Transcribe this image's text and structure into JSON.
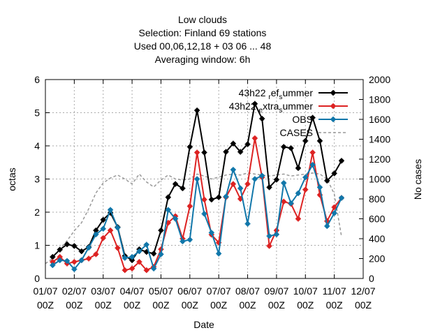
{
  "chart_data": {
    "type": "line",
    "title_lines": [
      "Low clouds",
      "Selection: Finland     69 stations",
      "Used  00,06,12,18  + 03 06 ... 48",
      "Averaging window:  6h"
    ],
    "xlabel": "Date",
    "ylabel": "octas",
    "y2label": "No cases",
    "ylim": [
      0,
      6
    ],
    "y2lim": [
      0,
      2000
    ],
    "yticks": [
      "0",
      "1",
      "2",
      "3",
      "4",
      "5",
      "6"
    ],
    "y2ticks": [
      "0",
      "200",
      "400",
      "600",
      "800",
      "1000",
      "1200",
      "1400",
      "1600",
      "1800",
      "2000"
    ],
    "xlim": [
      0,
      11
    ],
    "xticks_top": [
      "01/07",
      "02/07",
      "03/07",
      "04/07",
      "05/07",
      "06/07",
      "07/07",
      "08/07",
      "09/07",
      "10/07",
      "11/07",
      "12/07"
    ],
    "xticks_bottom": [
      "00Z",
      "00Z",
      "00Z",
      "00Z",
      "00Z",
      "00Z",
      "00Z",
      "00Z",
      "00Z",
      "00Z",
      "00Z",
      "00Z"
    ],
    "grid": true,
    "legend_position": "top-right",
    "series": [
      {
        "name": "43h22 ref summer",
        "label_parts": [
          "43h22 ",
          "r",
          "ef",
          "s",
          "ummer"
        ],
        "color": "#000000",
        "points": [
          [
            0.25,
            0.65
          ],
          [
            0.5,
            0.87
          ],
          [
            0.75,
            1.03
          ],
          [
            1.0,
            0.98
          ],
          [
            1.25,
            0.82
          ],
          [
            1.5,
            0.95
          ],
          [
            1.75,
            1.45
          ],
          [
            2.0,
            1.77
          ],
          [
            2.25,
            1.98
          ],
          [
            2.5,
            1.55
          ],
          [
            2.75,
            0.68
          ],
          [
            3.0,
            0.55
          ],
          [
            3.25,
            0.88
          ],
          [
            3.5,
            0.8
          ],
          [
            3.75,
            0.75
          ],
          [
            4.0,
            1.45
          ],
          [
            4.25,
            2.45
          ],
          [
            4.5,
            2.85
          ],
          [
            4.75,
            2.72
          ],
          [
            5.0,
            3.97
          ],
          [
            5.25,
            5.07
          ],
          [
            5.5,
            3.8
          ],
          [
            5.75,
            2.38
          ],
          [
            6.0,
            2.45
          ],
          [
            6.25,
            3.82
          ],
          [
            6.5,
            4.07
          ],
          [
            6.75,
            3.82
          ],
          [
            7.0,
            4.05
          ],
          [
            7.25,
            5.27
          ],
          [
            7.5,
            4.82
          ],
          [
            7.75,
            2.75
          ],
          [
            8.0,
            2.98
          ],
          [
            8.25,
            3.97
          ],
          [
            8.5,
            3.93
          ],
          [
            8.75,
            3.33
          ],
          [
            9.0,
            4.15
          ],
          [
            9.25,
            4.85
          ],
          [
            9.5,
            4.15
          ],
          [
            9.75,
            2.95
          ],
          [
            10.0,
            3.17
          ],
          [
            10.25,
            3.55
          ]
        ]
      },
      {
        "name": "43h22 extra summer",
        "label_parts": [
          "43h22 ",
          "e",
          "xtra",
          "s",
          "ummer"
        ],
        "color": "#dd2222",
        "points": [
          [
            0.25,
            0.5
          ],
          [
            0.5,
            0.65
          ],
          [
            0.75,
            0.45
          ],
          [
            1.0,
            0.5
          ],
          [
            1.25,
            0.55
          ],
          [
            1.5,
            0.6
          ],
          [
            1.75,
            0.73
          ],
          [
            2.0,
            1.22
          ],
          [
            2.25,
            1.45
          ],
          [
            2.5,
            0.92
          ],
          [
            2.75,
            0.25
          ],
          [
            3.0,
            0.3
          ],
          [
            3.25,
            0.5
          ],
          [
            3.5,
            0.25
          ],
          [
            3.75,
            0.35
          ],
          [
            4.0,
            0.88
          ],
          [
            4.25,
            1.68
          ],
          [
            4.5,
            1.88
          ],
          [
            4.75,
            1.2
          ],
          [
            5.0,
            2.18
          ],
          [
            5.25,
            3.8
          ],
          [
            5.5,
            2.38
          ],
          [
            5.75,
            1.32
          ],
          [
            6.0,
            1.08
          ],
          [
            6.25,
            2.45
          ],
          [
            6.5,
            2.85
          ],
          [
            6.75,
            2.4
          ],
          [
            7.0,
            2.85
          ],
          [
            7.25,
            4.23
          ],
          [
            7.5,
            3.05
          ],
          [
            7.75,
            0.98
          ],
          [
            8.0,
            1.45
          ],
          [
            8.25,
            2.32
          ],
          [
            8.5,
            2.25
          ],
          [
            8.75,
            1.8
          ],
          [
            9.0,
            2.68
          ],
          [
            9.25,
            3.8
          ],
          [
            9.5,
            2.52
          ],
          [
            9.75,
            1.73
          ],
          [
            10.0,
            2.15
          ],
          [
            10.25,
            2.43
          ]
        ]
      },
      {
        "name": "OBS",
        "label_parts": [
          "OBS"
        ],
        "color": "#1177aa",
        "points": [
          [
            0.25,
            0.4
          ],
          [
            0.5,
            0.55
          ],
          [
            0.75,
            0.53
          ],
          [
            1.0,
            0.28
          ],
          [
            1.25,
            0.55
          ],
          [
            1.5,
            0.93
          ],
          [
            1.75,
            1.33
          ],
          [
            2.0,
            1.5
          ],
          [
            2.25,
            2.07
          ],
          [
            2.5,
            1.53
          ],
          [
            2.75,
            0.62
          ],
          [
            3.0,
            0.65
          ],
          [
            3.25,
            0.82
          ],
          [
            3.5,
            1.02
          ],
          [
            3.75,
            0.3
          ],
          [
            4.0,
            0.73
          ],
          [
            4.25,
            2.07
          ],
          [
            4.5,
            1.8
          ],
          [
            4.75,
            1.12
          ],
          [
            5.0,
            1.17
          ],
          [
            5.25,
            3.0
          ],
          [
            5.5,
            1.95
          ],
          [
            5.75,
            1.38
          ],
          [
            6.0,
            0.75
          ],
          [
            6.25,
            2.47
          ],
          [
            6.5,
            3.28
          ],
          [
            6.75,
            2.72
          ],
          [
            7.0,
            1.65
          ],
          [
            7.25,
            3.0
          ],
          [
            7.5,
            3.1
          ],
          [
            7.75,
            1.28
          ],
          [
            8.0,
            1.33
          ],
          [
            8.25,
            2.88
          ],
          [
            8.5,
            2.27
          ],
          [
            8.75,
            2.57
          ],
          [
            9.0,
            3.05
          ],
          [
            9.25,
            3.43
          ],
          [
            9.5,
            2.75
          ],
          [
            9.75,
            1.58
          ],
          [
            10.0,
            1.97
          ],
          [
            10.25,
            2.43
          ]
        ]
      },
      {
        "name": "CASES",
        "label_parts": [
          "CASES"
        ],
        "color": "#999999",
        "axis": "y2",
        "dashed": true,
        "points": [
          [
            0.0,
            150
          ],
          [
            0.25,
            200
          ],
          [
            0.5,
            300
          ],
          [
            0.75,
            380
          ],
          [
            1.0,
            480
          ],
          [
            1.25,
            560
          ],
          [
            1.5,
            700
          ],
          [
            1.75,
            860
          ],
          [
            2.0,
            960
          ],
          [
            2.25,
            1010
          ],
          [
            2.5,
            1040
          ],
          [
            2.75,
            1000
          ],
          [
            3.0,
            950
          ],
          [
            3.25,
            1050
          ],
          [
            3.5,
            970
          ],
          [
            3.75,
            920
          ],
          [
            4.0,
            990
          ],
          [
            4.25,
            1040
          ],
          [
            4.5,
            1000
          ],
          [
            4.75,
            990
          ],
          [
            5.0,
            1000
          ],
          [
            5.25,
            1050
          ],
          [
            5.5,
            1030
          ],
          [
            5.75,
            1000
          ],
          [
            6.0,
            1020
          ],
          [
            6.25,
            1040
          ],
          [
            6.5,
            1050
          ],
          [
            6.75,
            1040
          ],
          [
            7.0,
            1060
          ],
          [
            7.25,
            1050
          ],
          [
            7.5,
            1040
          ],
          [
            7.75,
            1030
          ],
          [
            8.0,
            1040
          ],
          [
            8.25,
            1050
          ],
          [
            8.5,
            1030
          ],
          [
            8.75,
            1040
          ],
          [
            9.0,
            1050
          ],
          [
            9.25,
            1060
          ],
          [
            9.5,
            1050
          ],
          [
            9.75,
            1000
          ],
          [
            10.0,
            850
          ],
          [
            10.25,
            420
          ]
        ]
      }
    ]
  }
}
